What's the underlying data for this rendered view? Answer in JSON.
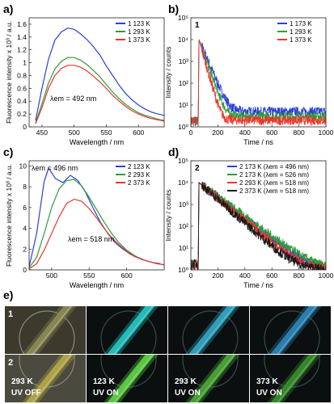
{
  "panel_letters": [
    "a)",
    "b)",
    "c)",
    "d)",
    "e)"
  ],
  "colors": {
    "c1": "#2b3fd6",
    "c2": "#2e9c3a",
    "c3": "#e8372c",
    "c4": "#1a1a1a"
  },
  "chart_data": [
    {
      "id": "a",
      "type": "line",
      "xlabel": "Wavelength / nm",
      "ylabel": "Fluorescence intensity x 10³ / a.u.",
      "xlim": [
        430,
        640
      ],
      "ylim": [
        0,
        1.7
      ],
      "xticks": [
        450,
        500,
        550,
        600
      ],
      "yticks": [
        0.0,
        0.2,
        0.4,
        0.6,
        0.8,
        1.0,
        1.2,
        1.4,
        1.6
      ],
      "annotation": "λem = 492 nm",
      "series": [
        {
          "name": "1 123 K",
          "color": "#2b3fd6",
          "x": [
            440,
            450,
            460,
            470,
            480,
            490,
            500,
            510,
            520,
            530,
            540,
            550,
            560,
            570,
            580,
            590,
            600,
            610,
            620,
            630,
            640
          ],
          "y": [
            0.1,
            0.6,
            1.05,
            1.35,
            1.48,
            1.54,
            1.52,
            1.45,
            1.36,
            1.25,
            1.12,
            0.95,
            0.8,
            0.65,
            0.52,
            0.42,
            0.34,
            0.28,
            0.23,
            0.2,
            0.18
          ]
        },
        {
          "name": "1 293 K",
          "color": "#2e9c3a",
          "x": [
            440,
            450,
            460,
            470,
            480,
            490,
            500,
            510,
            520,
            530,
            540,
            550,
            560,
            570,
            580,
            590,
            600,
            610,
            620,
            630,
            640
          ],
          "y": [
            0.06,
            0.36,
            0.68,
            0.9,
            1.02,
            1.08,
            1.08,
            1.04,
            0.97,
            0.88,
            0.78,
            0.66,
            0.54,
            0.44,
            0.35,
            0.28,
            0.22,
            0.18,
            0.15,
            0.12,
            0.1
          ]
        },
        {
          "name": "1 373 K",
          "color": "#e8372c",
          "x": [
            440,
            450,
            460,
            470,
            480,
            490,
            500,
            510,
            520,
            530,
            540,
            550,
            560,
            570,
            580,
            590,
            600,
            610,
            620,
            630,
            640
          ],
          "y": [
            0.05,
            0.3,
            0.6,
            0.8,
            0.91,
            0.96,
            0.96,
            0.93,
            0.87,
            0.79,
            0.7,
            0.6,
            0.49,
            0.4,
            0.32,
            0.25,
            0.2,
            0.16,
            0.13,
            0.11,
            0.09
          ]
        }
      ]
    },
    {
      "id": "b",
      "type": "line",
      "yscale": "log",
      "xlabel": "Time / ns",
      "ylabel": "Intensity / counts",
      "xlim": [
        0,
        1000
      ],
      "ylim": [
        1,
        100000
      ],
      "xticks": [
        0,
        200,
        400,
        600,
        800,
        1000
      ],
      "yticks": [
        1,
        10,
        100,
        1000,
        10000,
        100000
      ],
      "ytick_labels": [
        "10⁰",
        "10¹",
        "10²",
        "10³",
        "10⁴",
        "10⁵"
      ],
      "inset_label": "1",
      "series": [
        {
          "name": "1 173 K",
          "color": "#2b3fd6",
          "peak_time": 60,
          "peak_counts": 10000,
          "decay_ns": 30,
          "floor": 5
        },
        {
          "name": "1 293 K",
          "color": "#2e9c3a",
          "peak_time": 60,
          "peak_counts": 10000,
          "decay_ns": 25,
          "floor": 3
        },
        {
          "name": "1 373 K",
          "color": "#e8372c",
          "peak_time": 60,
          "peak_counts": 10000,
          "decay_ns": 20,
          "floor": 2
        }
      ]
    },
    {
      "id": "c",
      "type": "line",
      "xlabel": "Wavelength / nm",
      "ylabel": "Fluorescence intensity x 10³ / a.u.",
      "xlim": [
        470,
        650
      ],
      "ylim": [
        0,
        10.5
      ],
      "xticks": [
        500,
        550,
        600
      ],
      "yticks": [
        0,
        2,
        4,
        6,
        8,
        10
      ],
      "annotations": [
        "λem = 496 nm",
        "λem = 518 nm"
      ],
      "series": [
        {
          "name": "2 123 K",
          "color": "#2b3fd6",
          "x": [
            470,
            480,
            490,
            496,
            505,
            515,
            525,
            535,
            545,
            555,
            565,
            575,
            585,
            595,
            605,
            615,
            625,
            635,
            645
          ],
          "y": [
            0.3,
            3.5,
            8.5,
            9.8,
            8.8,
            8.4,
            9.1,
            8.6,
            7.5,
            6.0,
            4.6,
            3.5,
            2.6,
            2.0,
            1.5,
            1.2,
            0.9,
            0.7,
            0.6
          ]
        },
        {
          "name": "2 293 K",
          "color": "#2e9c3a",
          "x": [
            470,
            480,
            490,
            500,
            510,
            520,
            530,
            540,
            550,
            560,
            570,
            580,
            590,
            600,
            610,
            620,
            630,
            640,
            650
          ],
          "y": [
            0.2,
            1.2,
            3.5,
            6.0,
            7.8,
            8.6,
            8.7,
            8.1,
            7.0,
            5.8,
            4.6,
            3.5,
            2.6,
            1.9,
            1.4,
            1.0,
            0.8,
            0.6,
            0.5
          ]
        },
        {
          "name": "2 373 K",
          "color": "#e8372c",
          "x": [
            470,
            480,
            490,
            500,
            510,
            520,
            530,
            540,
            550,
            560,
            570,
            580,
            590,
            600,
            610,
            620,
            630,
            640,
            650
          ],
          "y": [
            0.1,
            0.6,
            1.9,
            3.5,
            5.1,
            6.4,
            6.8,
            6.6,
            5.9,
            5.0,
            4.0,
            3.1,
            2.4,
            1.8,
            1.3,
            1.0,
            0.8,
            0.6,
            0.5
          ]
        }
      ]
    },
    {
      "id": "d",
      "type": "line",
      "yscale": "log",
      "xlabel": "Time / ns",
      "ylabel": "Intensity / counts",
      "xlim": [
        0,
        1000
      ],
      "ylim": [
        1,
        100000
      ],
      "xticks": [
        0,
        200,
        400,
        600,
        800,
        1000
      ],
      "yticks": [
        1,
        10,
        100,
        1000,
        10000,
        100000
      ],
      "ytick_labels": [
        "10⁰",
        "10¹",
        "10²",
        "10³",
        "10⁴",
        "10⁵"
      ],
      "inset_label": "2",
      "series": [
        {
          "name": "2 173 K (λem = 496 nm)",
          "color": "#2b3fd6",
          "peak_time": 60,
          "peak_counts": 10000,
          "decay_ns": 90,
          "floor": 1
        },
        {
          "name": "2 173 K (λem = 526 nm)",
          "color": "#2e9c3a",
          "peak_time": 60,
          "peak_counts": 10000,
          "decay_ns": 95,
          "floor": 1
        },
        {
          "name": "2 293 K (λem = 518 nm)",
          "color": "#e8372c",
          "peak_time": 60,
          "peak_counts": 10000,
          "decay_ns": 85,
          "floor": 1
        },
        {
          "name": "2 373 K (λem = 518 nm)",
          "color": "#1a1a1a",
          "peak_time": 60,
          "peak_counts": 10000,
          "decay_ns": 80,
          "floor": 1
        }
      ]
    }
  ],
  "photos": {
    "rows": [
      "1",
      "2"
    ],
    "columns": [
      {
        "line1": "293 K",
        "line2": "UV OFF",
        "tint1": "#8c8c58",
        "tint2": "#b3a848"
      },
      {
        "line1": "123 K",
        "line2": "UV ON",
        "tint1": "#27c6c4",
        "tint2": "#5fd447"
      },
      {
        "line1": "293 K",
        "line2": "UV ON",
        "tint1": "#33a9c4",
        "tint2": "#4caa38"
      },
      {
        "line1": "373 K",
        "line2": "UV ON",
        "tint1": "#2d86b8",
        "tint2": "#3b8f2f"
      }
    ]
  }
}
